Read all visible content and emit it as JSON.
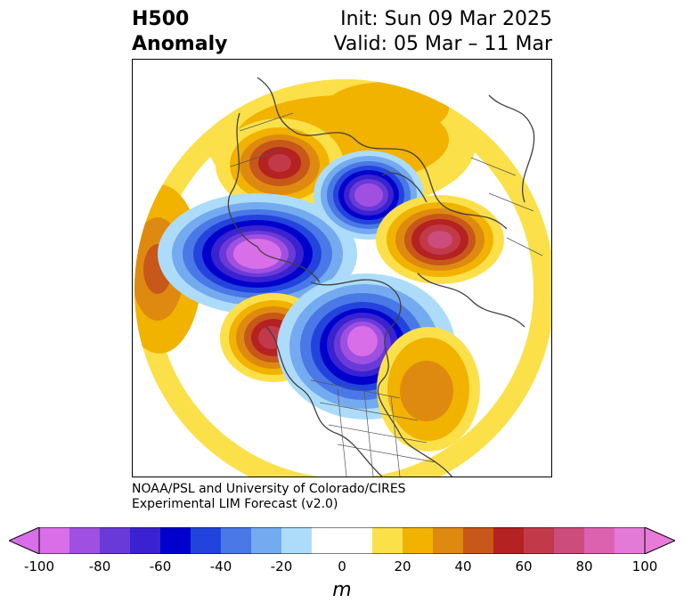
{
  "title": {
    "left_line1": "H500",
    "left_line2": "Anomaly",
    "right_line1": "Init: Sun 09 Mar 2025",
    "right_line2": "Valid: 05 Mar – 11 Mar"
  },
  "credit": {
    "line1": "NOAA/PSL and University of Colorado/CIRES",
    "line2": "Experimental LIM Forecast (v2.0)"
  },
  "colorbar": {
    "unit": "m",
    "ticks": [
      "-100",
      "-80",
      "-60",
      "-40",
      "-20",
      "0",
      "20",
      "40",
      "60",
      "80",
      "100"
    ],
    "colors": [
      "#d86ee8",
      "#a050e0",
      "#6a3ad8",
      "#3a22d0",
      "#0000cc",
      "#2244dd",
      "#4a78e6",
      "#74aaf0",
      "#acdcfa",
      "#ffffff",
      "#ffffff",
      "#fce04a",
      "#f2b200",
      "#de8a10",
      "#c8571a",
      "#b42222",
      "#c23a4a",
      "#cc4c7c",
      "#dc62b0",
      "#e47ad8"
    ],
    "under_color": "#d86ee8",
    "over_color": "#e87ad8"
  },
  "map": {
    "projection": "north-polar-stereographic",
    "field": "500 hPa geopotential height anomaly",
    "features": [
      "coastlines",
      "country-borders",
      "us-state-borders"
    ]
  }
}
